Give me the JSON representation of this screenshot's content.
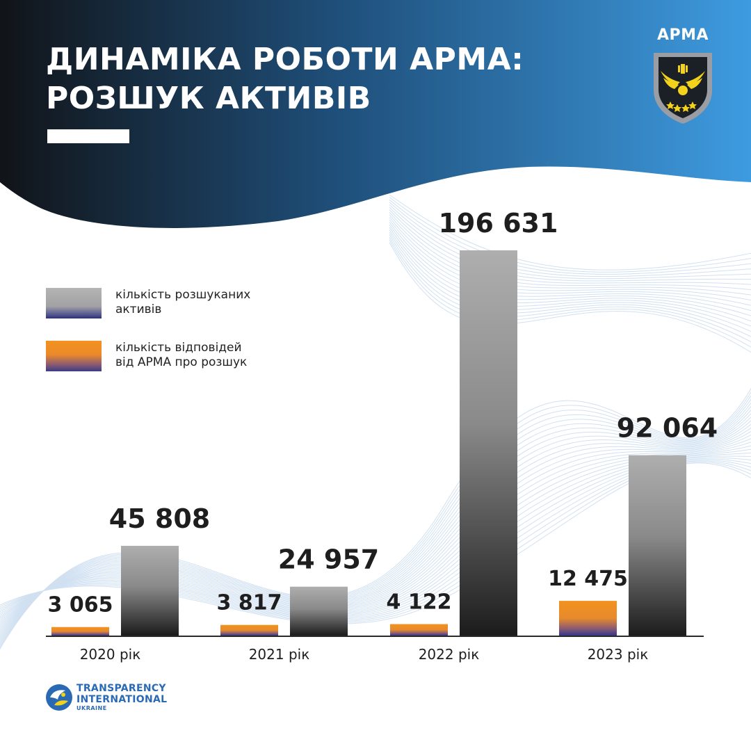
{
  "header": {
    "title_line1": "ДИНАМІКА РОБОТИ АРМА:",
    "title_line2": "РОЗШУК АКТИВІВ",
    "logo_text": "АРМА",
    "gradient_colors": [
      "#111418",
      "#1f4f7a",
      "#3e9be0"
    ]
  },
  "legend": {
    "items": [
      {
        "label_line1": "кількість розшуканих",
        "label_line2": "активів",
        "color": "#a9a9a9"
      },
      {
        "label_line1": "кількість відповідей",
        "label_line2": "від АРМА про розшук",
        "color": "#f39220"
      }
    ]
  },
  "chart_data": {
    "type": "bar",
    "categories": [
      "2020 рік",
      "2021 рік",
      "2022 рік",
      "2023 рік"
    ],
    "series": [
      {
        "name": "кількість відповідей від АРМА про розшук",
        "values": [
          3065,
          3817,
          4122,
          12475
        ],
        "labels": [
          "3 065",
          "3 817",
          "4 122",
          "12 475"
        ],
        "color": "#f39220"
      },
      {
        "name": "кількість розшуканих активів",
        "values": [
          45808,
          24957,
          196631,
          92064
        ],
        "labels": [
          "45 808",
          "24 957",
          "196 631",
          "92 064"
        ],
        "color": "#a9a9a9"
      }
    ],
    "xlabel": "",
    "ylabel": "",
    "grid": false,
    "legend_position": "left"
  },
  "footer": {
    "org_line1": "TRANSPARENCY",
    "org_line2": "INTERNATIONAL",
    "org_line3": "UKRAINE"
  }
}
